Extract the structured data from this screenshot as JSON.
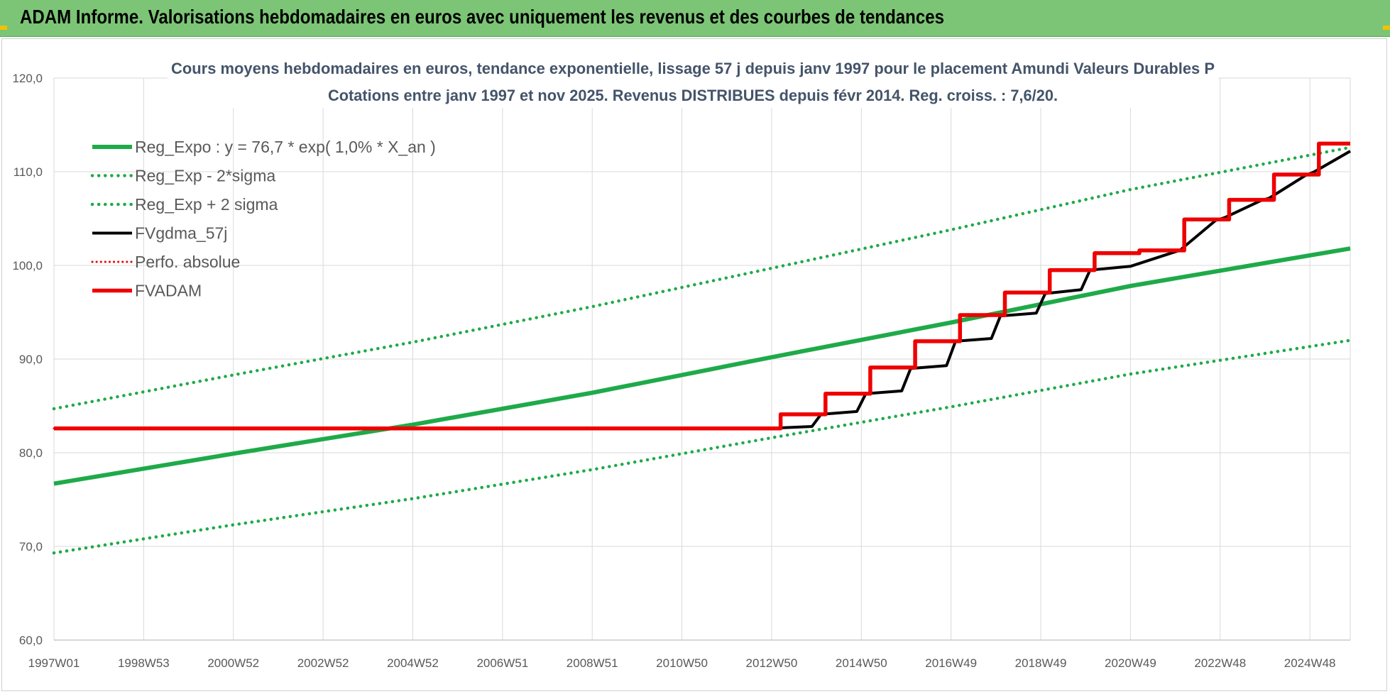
{
  "banner": {
    "title": "ADAM Informe. Valorisations hebdomadaires en euros avec uniquement les revenus et des courbes de tendances"
  },
  "chart_data": {
    "type": "line",
    "title": "Cours moyens hebdomadaires en euros, tendance exponentielle, lissage 57 j depuis janv 1997 pour le placement Amundi Valeurs Durables P",
    "subtitle": "Cotations entre janv 1997 et nov 2025. Revenus DISTRIBUES depuis févr 2014. Reg. croiss. : 7,6/20.",
    "xlabel": "",
    "ylabel": "",
    "ylim": [
      60,
      120
    ],
    "y_ticks": [
      "60,0",
      "70,0",
      "80,0",
      "90,0",
      "100,0",
      "110,0",
      "120,0"
    ],
    "x_range_years": [
      1997.0,
      2025.9
    ],
    "x_ticks": [
      "1997W01",
      "1998W53",
      "2000W52",
      "2002W52",
      "2004W52",
      "2006W51",
      "2008W51",
      "2010W50",
      "2012W50",
      "2014W50",
      "2016W49",
      "2018W49",
      "2020W49",
      "2022W48",
      "2024W48"
    ],
    "x_tick_years": [
      1997.0,
      1999.0,
      2001.0,
      2003.0,
      2005.0,
      2007.0,
      2009.0,
      2011.0,
      2013.0,
      2015.0,
      2017.0,
      2019.0,
      2021.0,
      2023.0,
      2025.0
    ],
    "grid": true,
    "legend_position": "top-left",
    "colors": {
      "green": "#1faa4a",
      "black": "#000000",
      "red": "#ee0000",
      "grid": "#d9d9d9",
      "tick": "#595959"
    },
    "series": [
      {
        "name": "Reg_Expo : y = 76,7 * exp( 1,0% *  X_an )",
        "style": "solid-green",
        "x": [
          1997.0,
          2001.0,
          2005.0,
          2009.0,
          2013.0,
          2017.0,
          2021.0,
          2025.9
        ],
        "y": [
          76.7,
          79.9,
          83.0,
          86.4,
          90.2,
          93.9,
          97.8,
          101.8
        ]
      },
      {
        "name": "Reg_Exp - 2*sigma",
        "style": "dotted-green",
        "x": [
          1997.0,
          2001.0,
          2005.0,
          2009.0,
          2013.0,
          2017.0,
          2021.0,
          2025.9
        ],
        "y": [
          69.3,
          72.3,
          75.1,
          78.2,
          81.6,
          84.9,
          88.4,
          92.0
        ]
      },
      {
        "name": "Reg_Exp + 2 sigma",
        "style": "dotted-green",
        "x": [
          1997.0,
          2001.0,
          2005.0,
          2009.0,
          2013.0,
          2017.0,
          2021.0,
          2025.9
        ],
        "y": [
          84.7,
          88.3,
          91.8,
          95.6,
          99.7,
          103.8,
          108.1,
          112.6
        ]
      },
      {
        "name": "FVgdma_57j",
        "style": "solid-black",
        "x": [
          1997.0,
          2012.9,
          2013.9,
          2014.1,
          2014.9,
          2015.1,
          2015.9,
          2016.1,
          2016.9,
          2017.1,
          2017.9,
          2018.1,
          2018.9,
          2019.1,
          2019.9,
          2020.1,
          2021.0,
          2021.9,
          2022.1,
          2022.9,
          2023.1,
          2023.9,
          2024.1,
          2024.9,
          2025.1,
          2025.9
        ],
        "y": [
          82.6,
          82.6,
          82.8,
          84.1,
          84.4,
          86.3,
          86.6,
          89.0,
          89.3,
          91.9,
          92.2,
          94.6,
          94.9,
          97.0,
          97.4,
          99.5,
          99.9,
          101.3,
          101.6,
          104.8,
          105.1,
          106.9,
          107.2,
          109.6,
          110.0,
          112.2
        ]
      },
      {
        "name": "Perfo. absolue",
        "style": "dotted-red",
        "x": [
          1997.0,
          2013.0
        ],
        "y": [
          82.6,
          82.6
        ]
      },
      {
        "name": "FVADAM",
        "style": "solid-red",
        "x": [
          1997.0,
          2013.2,
          2013.2,
          2014.2,
          2014.2,
          2015.2,
          2015.2,
          2016.2,
          2016.2,
          2017.2,
          2017.2,
          2018.2,
          2018.2,
          2019.2,
          2019.2,
          2020.2,
          2020.2,
          2021.2,
          2021.2,
          2022.2,
          2022.2,
          2023.2,
          2023.2,
          2024.2,
          2024.2,
          2025.2,
          2025.2,
          2025.9
        ],
        "y": [
          82.6,
          82.6,
          84.1,
          84.1,
          86.3,
          86.3,
          89.1,
          89.1,
          91.9,
          91.9,
          94.7,
          94.7,
          97.1,
          97.1,
          99.5,
          99.5,
          101.3,
          101.3,
          101.6,
          101.6,
          104.9,
          104.9,
          107.0,
          107.0,
          109.7,
          109.7,
          113.0,
          113.0
        ]
      }
    ]
  }
}
